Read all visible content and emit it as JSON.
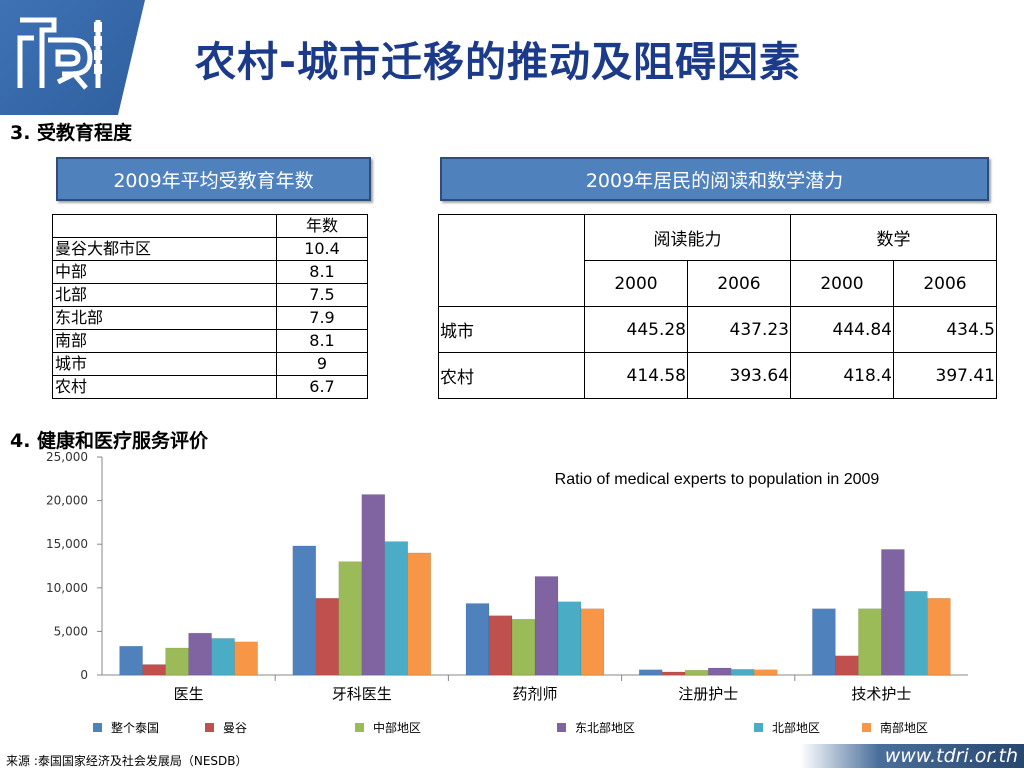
{
  "title": "农村-城市迁移的推动及阻碍因素",
  "section3": "3. 受教育程度",
  "section4": "4. 健康和医疗服务评价",
  "left_header": "2009年平均受教育年数",
  "right_header": "2009年居民的阅读和数学潜力",
  "edu_table": {
    "col_header": "年数",
    "rows": [
      {
        "region": "曼谷大都市区",
        "years": "10.4"
      },
      {
        "region": "中部",
        "years": "8.1"
      },
      {
        "region": "北部",
        "years": "7.5"
      },
      {
        "region": "东北部",
        "years": "7.9"
      },
      {
        "region": "南部",
        "years": "8.1"
      },
      {
        "region": "城市",
        "years": "9"
      },
      {
        "region": "农村",
        "years": "6.7"
      }
    ]
  },
  "read_table": {
    "reading": "阅读能力",
    "math": "数学",
    "years": [
      "2000",
      "2006",
      "2000",
      "2006"
    ],
    "rows": [
      {
        "label": "城市",
        "values": [
          "445.28",
          "437.23",
          "444.84",
          "434.5"
        ]
      },
      {
        "label": "农村",
        "values": [
          "414.58",
          "393.64",
          "418.4",
          "397.41"
        ]
      }
    ]
  },
  "chart_data": {
    "type": "bar",
    "title": "Ratio of medical experts to population in 2009",
    "categories": [
      "医生",
      "牙科医生",
      "药剂师",
      "注册护士",
      "技术护士"
    ],
    "ylim": [
      0,
      25000
    ],
    "yticks": [
      "0",
      "5,000",
      "10,000",
      "15,000",
      "20,000",
      "25,000"
    ],
    "legend_position": "bottom",
    "series": [
      {
        "name": "整个泰国",
        "color": "#4f81bd",
        "values": [
          3300,
          14800,
          8200,
          600,
          7600
        ]
      },
      {
        "name": "曼谷",
        "color": "#c0504d",
        "values": [
          1200,
          8800,
          6800,
          350,
          2200
        ]
      },
      {
        "name": "中部地区",
        "color": "#9bbb59",
        "values": [
          3100,
          13000,
          6400,
          550,
          7600
        ]
      },
      {
        "name": "东北部地区",
        "color": "#8064a2",
        "values": [
          4800,
          20700,
          11300,
          800,
          14400
        ]
      },
      {
        "name": "北部地区",
        "color": "#4bacc6",
        "values": [
          4200,
          15300,
          8400,
          650,
          9600
        ]
      },
      {
        "name": "南部地区",
        "color": "#f79646",
        "values": [
          3800,
          14000,
          7600,
          600,
          8800
        ]
      }
    ]
  },
  "footer_source": "来源 :泰国国家经济及社会发展局（NESDB）",
  "footer_url": "www.tdri.or.th"
}
